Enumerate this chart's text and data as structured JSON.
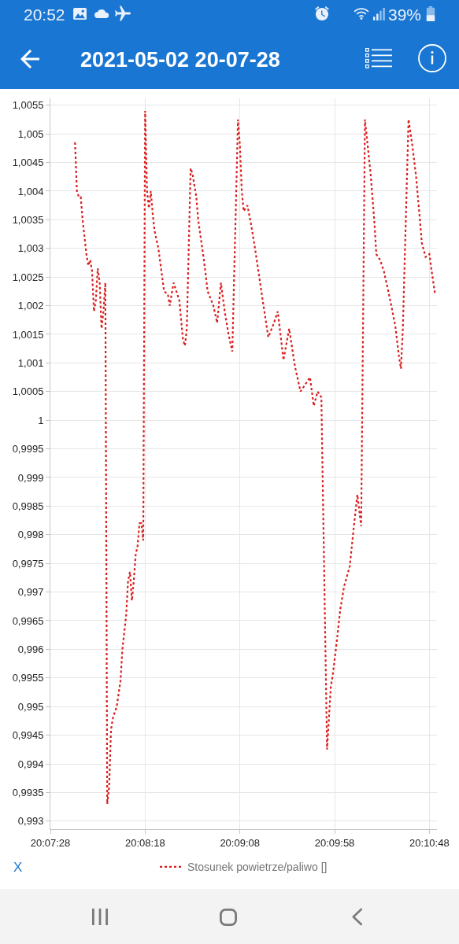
{
  "chart_data": {
    "type": "line",
    "title": "2021-05-02 20-07-28",
    "annotations": [
      "20:52",
      "39%",
      "X"
    ],
    "x": [
      "2021-05-02T20:07:41",
      "2021-05-02T20:07:42",
      "2021-05-02T20:07:43",
      "2021-05-02T20:07:44",
      "2021-05-02T20:07:45",
      "2021-05-02T20:07:46",
      "2021-05-02T20:07:47",
      "2021-05-02T20:07:48",
      "2021-05-02T20:07:49",
      "2021-05-02T20:07:50",
      "2021-05-02T20:07:51",
      "2021-05-02T20:07:52",
      "2021-05-02T20:07:53",
      "2021-05-02T20:07:54",
      "2021-05-02T20:07:55",
      "2021-05-02T20:07:56",
      "2021-05-02T20:07:57",
      "2021-05-02T20:07:58",
      "2021-05-02T20:07:59",
      "2021-05-02T20:08:00",
      "2021-05-02T20:08:01",
      "2021-05-02T20:08:03",
      "2021-05-02T20:08:05",
      "2021-05-02T20:08:06",
      "2021-05-02T20:08:08",
      "2021-05-02T20:08:09",
      "2021-05-02T20:08:10",
      "2021-05-02T20:08:11",
      "2021-05-02T20:08:12",
      "2021-05-02T20:08:13",
      "2021-05-02T20:08:14",
      "2021-05-02T20:08:15",
      "2021-05-02T20:08:16",
      "2021-05-02T20:08:17",
      "2021-05-02T20:08:18",
      "2021-05-02T20:08:19",
      "2021-05-02T20:08:20",
      "2021-05-02T20:08:21",
      "2021-05-02T20:08:22",
      "2021-05-02T20:08:23",
      "2021-05-02T20:08:25",
      "2021-05-02T20:08:28",
      "2021-05-02T20:08:30",
      "2021-05-02T20:08:31",
      "2021-05-02T20:08:33",
      "2021-05-02T20:08:34",
      "2021-05-02T20:08:36",
      "2021-05-02T20:08:38",
      "2021-05-02T20:08:39",
      "2021-05-02T20:08:40",
      "2021-05-02T20:08:42",
      "2021-05-02T20:08:43",
      "2021-05-02T20:08:45",
      "2021-05-02T20:08:46",
      "2021-05-02T20:08:49",
      "2021-05-02T20:08:51",
      "2021-05-02T20:08:54",
      "2021-05-02T20:08:56",
      "2021-05-02T20:08:58",
      "2021-05-02T20:09:00",
      "2021-05-02T20:09:02",
      "2021-05-02T20:09:04",
      "2021-05-02T20:09:07",
      "2021-05-02T20:09:08",
      "2021-05-02T20:09:09",
      "2021-05-02T20:09:10",
      "2021-05-02T20:09:12",
      "2021-05-02T20:09:14",
      "2021-05-02T20:09:16",
      "2021-05-02T20:09:18",
      "2021-05-02T20:09:20",
      "2021-05-02T20:09:23",
      "2021-05-02T20:09:26",
      "2021-05-02T20:09:28",
      "2021-05-02T20:09:31",
      "2021-05-02T20:09:34",
      "2021-05-02T20:09:37",
      "2021-05-02T20:09:40",
      "2021-05-02T20:09:45",
      "2021-05-02T20:09:47",
      "2021-05-02T20:09:49",
      "2021-05-02T20:09:51",
      "2021-05-02T20:09:54",
      "2021-05-02T20:09:56",
      "2021-05-02T20:09:57",
      "2021-05-02T20:09:59",
      "2021-05-02T20:10:01",
      "2021-05-02T20:10:03",
      "2021-05-02T20:10:06",
      "2021-05-02T20:10:08",
      "2021-05-02T20:10:10",
      "2021-05-02T20:10:12",
      "2021-05-02T20:10:14",
      "2021-05-02T20:10:17",
      "2021-05-02T20:10:19",
      "2021-05-02T20:10:20",
      "2021-05-02T20:10:22",
      "2021-05-02T20:10:24",
      "2021-05-02T20:10:27",
      "2021-05-02T20:10:30",
      "2021-05-02T20:10:32",
      "2021-05-02T20:10:33",
      "2021-05-02T20:10:34",
      "2021-05-02T20:10:37",
      "2021-05-02T20:10:39",
      "2021-05-02T20:10:41",
      "2021-05-02T20:10:43",
      "2021-05-02T20:10:44",
      "2021-05-02T20:10:46",
      "2021-05-02T20:10:48",
      "2021-05-02T20:10:49",
      "2021-05-02T20:10:51"
    ],
    "series": [
      {
        "name": "Stosunek powietrze/paliwo []",
        "color": "#d91e1e",
        "values": [
          1.00485,
          1.004,
          1.0039,
          1.0039,
          1.0035,
          1.0032,
          1.0029,
          1.0027,
          1.0028,
          1.0026,
          1.0019,
          1.0021,
          1.00265,
          1.0024,
          1.0016,
          1.0019,
          1.0024,
          0.9933,
          0.9936,
          0.9946,
          0.9948,
          0.995,
          0.99545,
          0.996,
          0.9966,
          0.9972,
          0.99735,
          0.99685,
          0.9972,
          0.99765,
          0.9978,
          0.9982,
          0.9982,
          0.9979,
          1.0054,
          1.004,
          1.0037,
          1.004,
          1.0036,
          1.0033,
          1.003,
          1.00225,
          1.0022,
          1.002,
          1.0024,
          1.0023,
          1.0021,
          1.0014,
          1.0013,
          1.0016,
          1.0044,
          1.0043,
          1.0039,
          1.0035,
          1.0028,
          1.00225,
          1.002,
          1.0017,
          1.0024,
          1.0019,
          1.0015,
          1.0012,
          1.00525,
          1.0048,
          1.004,
          1.00365,
          1.00375,
          1.0034,
          1.003,
          1.00255,
          1.0021,
          1.00145,
          1.0017,
          1.0019,
          1.00105,
          1.0016,
          1.00095,
          1.0005,
          1.00075,
          1.00025,
          1.0005,
          1.0004,
          0.99425,
          0.99535,
          0.99555,
          0.9961,
          0.9967,
          0.9971,
          0.99745,
          0.9981,
          0.9987,
          0.99815,
          1.00525,
          1.0043,
          1.00345,
          1.0029,
          1.0028,
          1.0026,
          1.00215,
          1.00165,
          1.0011,
          1.0009,
          1.0016,
          1.00525,
          1.0048,
          1.00425,
          1.0035,
          1.0031,
          1.00285,
          1.0029,
          1.00265,
          1.0022
        ]
      }
    ],
    "xlim": [
      "2021-05-02T20:07:28",
      "2021-05-02T20:10:52"
    ],
    "xticks": [
      {
        "value": "2021-05-02T20:07:28",
        "label": "20:07:28"
      },
      {
        "value": "2021-05-02T20:08:18",
        "label": "20:08:18"
      },
      {
        "value": "2021-05-02T20:09:08",
        "label": "20:09:08"
      },
      {
        "value": "2021-05-02T20:09:58",
        "label": "20:09:58"
      },
      {
        "value": "2021-05-02T20:10:48",
        "label": "20:10:48"
      }
    ],
    "ylim": [
      0.99286,
      1.00562
    ],
    "yticks": [
      {
        "value": 0.993,
        "label": "0,993"
      },
      {
        "value": 0.9935,
        "label": "0,9935"
      },
      {
        "value": 0.994,
        "label": "0,994"
      },
      {
        "value": 0.9945,
        "label": "0,9945"
      },
      {
        "value": 0.995,
        "label": "0,995"
      },
      {
        "value": 0.9955,
        "label": "0,9955"
      },
      {
        "value": 0.996,
        "label": "0,996"
      },
      {
        "value": 0.9965,
        "label": "0,9965"
      },
      {
        "value": 0.997,
        "label": "0,997"
      },
      {
        "value": 0.9975,
        "label": "0,9975"
      },
      {
        "value": 0.998,
        "label": "0,998"
      },
      {
        "value": 0.9985,
        "label": "0,9985"
      },
      {
        "value": 0.999,
        "label": "0,999"
      },
      {
        "value": 0.9995,
        "label": "0,9995"
      },
      1,
      {
        "value": 1.0005,
        "label": "1,0005"
      },
      {
        "value": 1.001,
        "label": "1,001"
      },
      {
        "value": 1.0015,
        "label": "1,0015"
      },
      {
        "value": 1.002,
        "label": "1,002"
      },
      {
        "value": 1.0025,
        "label": "1,0025"
      },
      {
        "value": 1.003,
        "label": "1,003"
      },
      {
        "value": 1.0035,
        "label": "1,0035"
      },
      {
        "value": 1.004,
        "label": "1,004"
      },
      {
        "value": 1.0045,
        "label": "1,0045"
      },
      {
        "value": 1.005,
        "label": "1,005"
      },
      {
        "value": 1.0055,
        "label": "1,0055"
      }
    ],
    "grid": true,
    "legend": "bottom",
    "line_style": "dotted"
  }
}
